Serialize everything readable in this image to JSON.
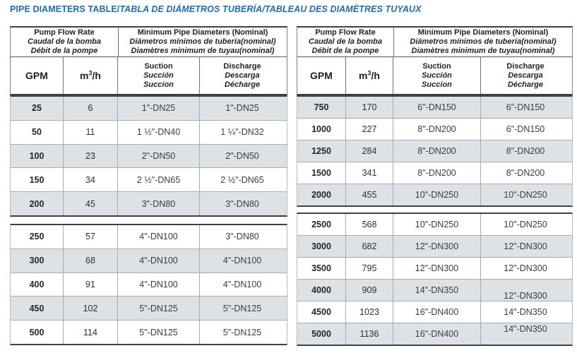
{
  "title": {
    "en": "PIPE DIAMETERS TABLE/",
    "translations": "TABLA DE DIÁMETROS TUBERÍA/TABLEAU DES DIAMÈTRES TUYAUX"
  },
  "colors": {
    "title_blue": "#1e6cb5",
    "stripe_gray": "#dde2e6",
    "border_dark": "#3d4144",
    "text_dark": "#231f20"
  },
  "header": {
    "flow_en": "Pump Flow Rate",
    "flow_es": "Caudal de la bomba",
    "flow_fr": "Débit de la pompe",
    "diameters_en": "Minimum Pipe Diameters (Nominal)",
    "diameters_es": "Diámetros mínimos de tubería(nominal)",
    "diameters_fr": "Diamètres minimum de tuyau(nominal)",
    "gpm_label": "GPM",
    "m3h_base": "m",
    "m3h_sup": "3",
    "m3h_unit": "/h",
    "suction_en": "Suction",
    "suction_es": "Succión",
    "suction_fr": "Succion",
    "discharge_en": "Discharge",
    "discharge_es": "Descarga",
    "discharge_fr": "Décharge"
  },
  "tables": [
    {
      "id": "low-flow",
      "blocks": [
        {
          "rows": [
            {
              "gpm": "25",
              "m3h": "6",
              "suction": "1\"-DN25",
              "discharge": "1\"-DN25"
            },
            {
              "gpm": "50",
              "m3h": "11",
              "suction": "1 ½\"-DN40",
              "discharge": "1 ¼\"-DN32"
            },
            {
              "gpm": "100",
              "m3h": "23",
              "suction": "2\"-DN50",
              "discharge": "2\"-DN50"
            },
            {
              "gpm": "150",
              "m3h": "34",
              "suction": "2 ½\"-DN65",
              "discharge": "2 ½\"-DN65"
            },
            {
              "gpm": "200",
              "m3h": "45",
              "suction": "3\"-DN80",
              "discharge": "3\"-DN80"
            }
          ]
        },
        {
          "rows": [
            {
              "gpm": "250",
              "m3h": "57",
              "suction": "4\"-DN100",
              "discharge": "3\"-DN80"
            },
            {
              "gpm": "300",
              "m3h": "68",
              "suction": "4\"-DN100",
              "discharge": "4\"-DN100"
            },
            {
              "gpm": "400",
              "m3h": "91",
              "suction": "4\"-DN100",
              "discharge": "4\"-DN100"
            },
            {
              "gpm": "450",
              "m3h": "102",
              "suction": "5\"-DN125",
              "discharge": "5\"-DN125"
            },
            {
              "gpm": "500",
              "m3h": "114",
              "suction": "5\"-DN125",
              "discharge": "5\"-DN125"
            }
          ]
        }
      ]
    },
    {
      "id": "high-flow",
      "blocks": [
        {
          "rows": [
            {
              "gpm": "750",
              "m3h": "170",
              "suction": "6\"-DN150",
              "discharge": "6\"-DN150"
            },
            {
              "gpm": "1000",
              "m3h": "227",
              "suction": "8\"-DN200",
              "discharge": "6\"-DN150"
            },
            {
              "gpm": "1250",
              "m3h": "284",
              "suction": "8\"-DN200",
              "discharge": "8\"-DN200"
            },
            {
              "gpm": "1500",
              "m3h": "341",
              "suction": "8\"-DN200",
              "discharge": "8\"-DN200"
            },
            {
              "gpm": "2000",
              "m3h": "455",
              "suction": "10\"-DN250",
              "discharge": "10\"-DN250"
            }
          ]
        },
        {
          "rows": [
            {
              "gpm": "2500",
              "m3h": "568",
              "suction": "10\"-DN250",
              "discharge": "10\"-DN250"
            },
            {
              "gpm": "3000",
              "m3h": "682",
              "suction": "12\"-DN300",
              "discharge": "12\"-DN300"
            },
            {
              "gpm": "3500",
              "m3h": "795",
              "suction": "12\"-DN300",
              "discharge": "12\"-DN300"
            },
            {
              "gpm": "4000",
              "m3h": "909",
              "suction": "14\"-DN350",
              "discharge": "12\"-DN300"
            },
            {
              "gpm": "4500",
              "m3h": "1023",
              "suction": "16\"-DN400",
              "discharge": "14\"-DN350"
            },
            {
              "gpm": "5000",
              "m3h": "1136",
              "suction": "16\"-DN400",
              "discharge": "14\"-DN350"
            }
          ]
        }
      ]
    }
  ]
}
